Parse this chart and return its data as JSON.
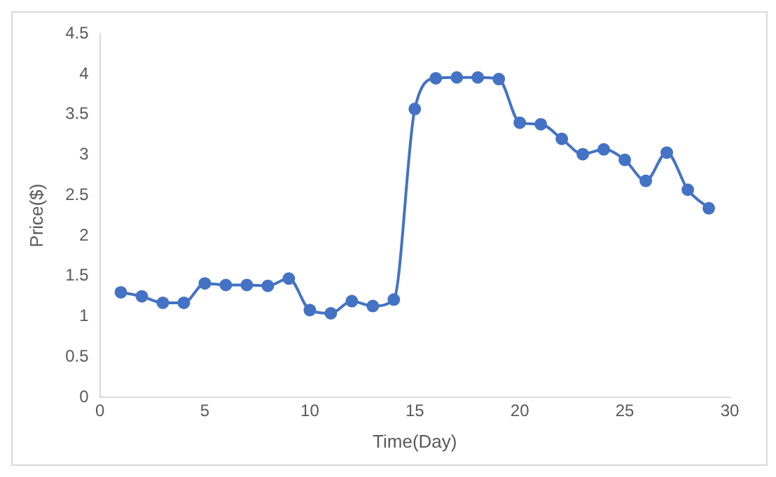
{
  "chart_data": {
    "type": "line",
    "xlabel": "Time(Day)",
    "ylabel": "Price($)",
    "x": [
      1,
      2,
      3,
      4,
      5,
      6,
      7,
      8,
      9,
      10,
      11,
      12,
      13,
      14,
      15,
      16,
      17,
      18,
      19,
      20,
      21,
      22,
      23,
      24,
      25,
      26,
      27,
      28,
      29
    ],
    "series": [
      {
        "color": "#4472c4",
        "values": [
          1.3,
          1.25,
          1.17,
          1.17,
          1.41,
          1.39,
          1.39,
          1.38,
          1.47,
          1.08,
          1.04,
          1.19,
          1.13,
          1.21,
          3.57,
          3.95,
          3.96,
          3.96,
          3.94,
          3.4,
          3.38,
          3.2,
          3.01,
          3.07,
          2.94,
          2.68,
          3.03,
          2.57,
          2.34
        ]
      }
    ],
    "xlim": [
      0,
      30
    ],
    "xticks": [
      0,
      5,
      10,
      15,
      20,
      25,
      30
    ],
    "ylim": [
      0,
      4.5
    ],
    "yticks": [
      0,
      0.5,
      1,
      1.5,
      2,
      2.5,
      3,
      3.5,
      4,
      4.5
    ],
    "grid": false,
    "legend": false,
    "marker": "circle",
    "line_style": "solid"
  }
}
